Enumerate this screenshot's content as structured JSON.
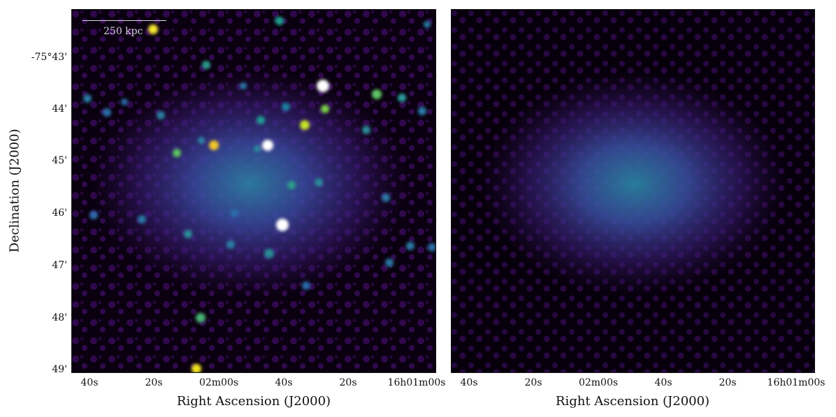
{
  "figure": {
    "x_axis_title": "Right Ascension (J2000)",
    "y_axis_title": "Declination (J2000)",
    "x_tick_labels": [
      "40s",
      "20s",
      "02m00s",
      "40s",
      "20s",
      "16h01m00s"
    ],
    "y_tick_labels": [
      "-75°43'",
      "44'",
      "45'",
      "46'",
      "47'",
      "48'",
      "49'"
    ],
    "scale_bar_label": "250 kpc",
    "colormap": [
      "#000000",
      "#3a0a55",
      "#3f2a8c",
      "#2c5ea8",
      "#1f9c8f",
      "#6ccf52",
      "#f2e51f",
      "#ffffff"
    ]
  }
}
